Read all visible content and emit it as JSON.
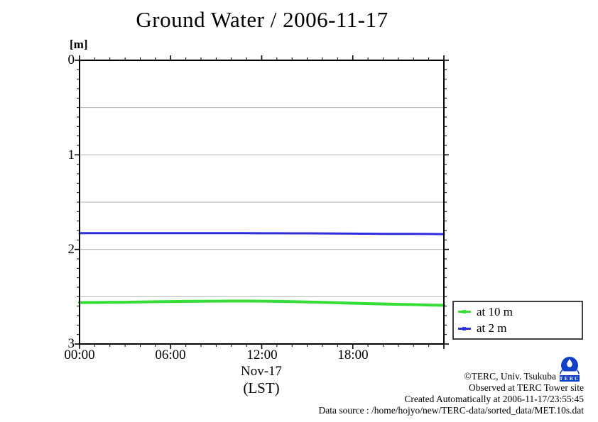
{
  "title": "Ground Water / 2006-11-17",
  "axes": {
    "y": {
      "unit": "[m]",
      "tick_labels": [
        "0",
        "1",
        "2",
        "3"
      ],
      "tick_values": [
        0,
        1,
        2,
        3
      ],
      "minor_step": 0.1,
      "grid_values": [
        0.5,
        1,
        1.5,
        2,
        2.5
      ],
      "range": [
        0,
        3
      ],
      "direction": "depth-downward"
    },
    "x": {
      "tick_labels": [
        "00:00",
        "06:00",
        "12:00",
        "18:00"
      ],
      "tick_values": [
        0,
        6,
        12,
        18
      ],
      "minor_step": 1,
      "range": [
        0,
        24
      ],
      "date_label": "Nov-17",
      "tz_label": "(LST)"
    }
  },
  "legend": {
    "entries": [
      {
        "label": "at 10 m",
        "color": "#35dd35"
      },
      {
        "label": "at 2 m",
        "color": "#2d2de0"
      }
    ]
  },
  "chart_data": {
    "type": "line",
    "title": "Ground Water / 2006-11-17",
    "xlabel": "Nov-17 (LST)",
    "ylabel": "[m]",
    "xlim": [
      0,
      24
    ],
    "ylim": [
      3,
      0
    ],
    "grid": "horizontal gridlines at 0.5 m steps",
    "legend_position": "outside right-bottom",
    "x_hours": [
      0,
      1,
      2,
      3,
      4,
      5,
      6,
      7,
      8,
      9,
      10,
      11,
      12,
      13,
      14,
      15,
      16,
      17,
      18,
      19,
      20,
      21,
      22,
      23,
      24
    ],
    "series": [
      {
        "name": "at 10 m",
        "color": "#35dd35",
        "values": [
          2.562,
          2.561,
          2.56,
          2.558,
          2.556,
          2.553,
          2.551,
          2.549,
          2.548,
          2.547,
          2.546,
          2.546,
          2.547,
          2.549,
          2.552,
          2.556,
          2.56,
          2.564,
          2.569,
          2.573,
          2.577,
          2.581,
          2.584,
          2.588,
          2.591
        ]
      },
      {
        "name": "at 2 m",
        "color": "#2d2de0",
        "values": [
          1.828,
          1.828,
          1.828,
          1.828,
          1.828,
          1.828,
          1.828,
          1.828,
          1.828,
          1.828,
          1.828,
          1.828,
          1.829,
          1.829,
          1.83,
          1.83,
          1.831,
          1.832,
          1.833,
          1.834,
          1.835,
          1.836,
          1.836,
          1.837,
          1.838
        ]
      }
    ]
  },
  "footer": {
    "copyright": "©TERC, Univ. Tsukuba",
    "observed": "Observed at TERC Tower site",
    "created": "Created Automatically at 2006-11-17/23:55:45",
    "source": "Data source : /home/hojyo/new/TERC-data/sorted_data/MET.10s.dat",
    "logo_text": "TERC"
  },
  "colors": {
    "grid": "#b3b3b3",
    "axis": "#000000",
    "logo_blue": "#1040c8"
  }
}
